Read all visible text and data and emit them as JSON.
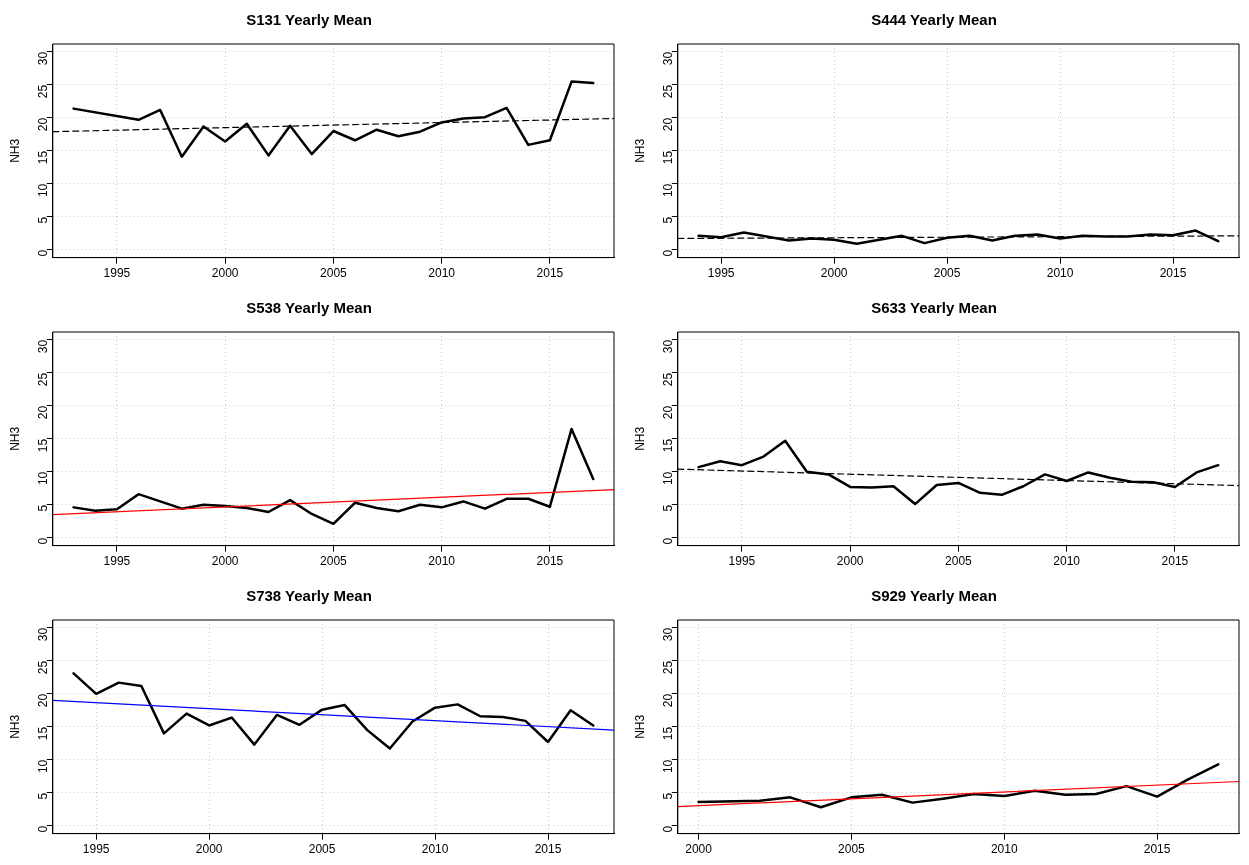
{
  "chart_data": [
    {
      "type": "line",
      "title": "S131 Yearly Mean",
      "ylabel": "NH3",
      "xlim": [
        1992.04,
        2017.96
      ],
      "xticks": [
        1995,
        2000,
        2005,
        2010,
        2015
      ],
      "ylim": [
        -1.2,
        31.2
      ],
      "yticks": [
        0,
        5,
        10,
        15,
        20,
        25,
        30
      ],
      "grid": true,
      "marker": "none",
      "series": [
        {
          "color": "#000000",
          "line_style": "solid",
          "x": [
            1993,
            1996,
            1997,
            1998,
            1999,
            2000,
            2001,
            2002,
            2003,
            2004,
            2005,
            2006,
            2007,
            2008,
            2009,
            2010,
            2011,
            2012,
            2013,
            2014,
            2015,
            2016,
            2017
          ],
          "values": [
            21.4,
            19.7,
            21.2,
            14.1,
            18.7,
            16.4,
            19.1,
            14.3,
            18.8,
            14.5,
            18.0,
            16.6,
            18.2,
            17.2,
            17.9,
            19.3,
            19.9,
            20.1,
            21.5,
            15.9,
            16.6,
            25.5,
            25.3
          ]
        },
        {
          "color": "#000000",
          "line_style": "dashed",
          "x": [
            1992.04,
            2017.96
          ],
          "values": [
            17.9,
            19.9
          ]
        }
      ]
    },
    {
      "type": "line",
      "title": "S444 Yearly Mean",
      "ylabel": "NH3",
      "xlim": [
        1993.08,
        2017.92
      ],
      "xticks": [
        1995,
        2000,
        2005,
        2010,
        2015
      ],
      "ylim": [
        -1.2,
        31.2
      ],
      "yticks": [
        0,
        5,
        10,
        15,
        20,
        25,
        30
      ],
      "grid": true,
      "marker": "none",
      "series": [
        {
          "color": "#000000",
          "line_style": "solid",
          "x": [
            1994,
            1995,
            1996,
            1997,
            1998,
            1999,
            2000,
            2001,
            2002,
            2003,
            2004,
            2005,
            2006,
            2007,
            2008,
            2009,
            2010,
            2011,
            2012,
            2013,
            2014,
            2015,
            2016,
            2017
          ],
          "values": [
            2.1,
            1.9,
            2.6,
            2.0,
            1.4,
            1.7,
            1.5,
            0.9,
            1.5,
            2.1,
            1.0,
            1.8,
            2.1,
            1.4,
            2.1,
            2.3,
            1.7,
            2.1,
            2.0,
            2.0,
            2.3,
            2.2,
            2.9,
            1.3
          ]
        },
        {
          "color": "#000000",
          "line_style": "dashed",
          "x": [
            1993.08,
            2017.92
          ],
          "values": [
            1.7,
            2.1
          ]
        }
      ]
    },
    {
      "type": "line",
      "title": "S538 Yearly Mean",
      "ylabel": "NH3",
      "xlim": [
        1992.04,
        2017.96
      ],
      "xticks": [
        1995,
        2000,
        2005,
        2010,
        2015
      ],
      "ylim": [
        -1.2,
        31.2
      ],
      "yticks": [
        0,
        5,
        10,
        15,
        20,
        25,
        30
      ],
      "grid": true,
      "marker": "none",
      "series": [
        {
          "color": "#000000",
          "line_style": "solid",
          "x": [
            1993,
            1994,
            1995,
            1996,
            1997,
            1998,
            1999,
            2000,
            2001,
            2002,
            2003,
            2004,
            2005,
            2006,
            2007,
            2008,
            2009,
            2010,
            2011,
            2012,
            2013,
            2014,
            2015,
            2016,
            2017
          ],
          "values": [
            4.6,
            4.1,
            4.3,
            6.6,
            5.5,
            4.4,
            5.0,
            4.8,
            4.5,
            3.9,
            5.7,
            3.6,
            2.1,
            5.3,
            4.5,
            4.0,
            5.0,
            4.6,
            5.5,
            4.4,
            5.9,
            5.9,
            4.7,
            16.5,
            8.9
          ]
        },
        {
          "color": "#ff0000",
          "line_style": "solid",
          "x": [
            1992.04,
            2017.96
          ],
          "values": [
            3.5,
            7.3
          ]
        }
      ]
    },
    {
      "type": "line",
      "title": "S633 Yearly Mean",
      "ylabel": "NH3",
      "xlim": [
        1992.04,
        2017.96
      ],
      "xticks": [
        1995,
        2000,
        2005,
        2010,
        2015
      ],
      "ylim": [
        -1.2,
        31.2
      ],
      "yticks": [
        0,
        5,
        10,
        15,
        20,
        25,
        30
      ],
      "grid": true,
      "marker": "none",
      "series": [
        {
          "color": "#000000",
          "line_style": "solid",
          "x": [
            1993,
            1994,
            1995,
            1996,
            1997,
            1998,
            1999,
            2000,
            2001,
            2002,
            2003,
            2004,
            2005,
            2006,
            2007,
            2008,
            2009,
            2010,
            2011,
            2012,
            2013,
            2014,
            2015,
            2016,
            2017
          ],
          "values": [
            10.7,
            11.6,
            11.0,
            12.3,
            14.7,
            10.0,
            9.6,
            7.7,
            7.6,
            7.8,
            5.1,
            8.0,
            8.3,
            6.8,
            6.5,
            7.8,
            9.6,
            8.6,
            9.9,
            9.1,
            8.5,
            8.4,
            7.7,
            9.9,
            11.0
          ]
        },
        {
          "color": "#000000",
          "line_style": "dashed",
          "x": [
            1992.04,
            2017.96
          ],
          "values": [
            10.4,
            7.9
          ]
        }
      ]
    },
    {
      "type": "line",
      "title": "S738 Yearly Mean",
      "ylabel": "NH3",
      "xlim": [
        1993.08,
        2017.92
      ],
      "xticks": [
        1995,
        2000,
        2005,
        2010,
        2015
      ],
      "ylim": [
        -1.2,
        31.2
      ],
      "yticks": [
        0,
        5,
        10,
        15,
        20,
        25,
        30
      ],
      "grid": true,
      "marker": "none",
      "series": [
        {
          "color": "#000000",
          "line_style": "solid",
          "x": [
            1994,
            1995,
            1996,
            1997,
            1998,
            1999,
            2000,
            2001,
            2002,
            2003,
            2004,
            2005,
            2006,
            2007,
            2008,
            2009,
            2010,
            2011,
            2012,
            2013,
            2014,
            2015,
            2016,
            2017
          ],
          "values": [
            23.1,
            20.0,
            21.7,
            21.2,
            14.0,
            17.0,
            15.2,
            16.4,
            12.3,
            16.8,
            15.3,
            17.6,
            18.3,
            14.5,
            11.7,
            15.8,
            17.9,
            18.4,
            16.6,
            16.5,
            15.9,
            12.7,
            17.5,
            15.2
          ]
        },
        {
          "color": "#0000ff",
          "line_style": "solid",
          "x": [
            1993.08,
            2017.92
          ],
          "values": [
            19.0,
            14.5
          ]
        }
      ]
    },
    {
      "type": "line",
      "title": "S929 Yearly Mean",
      "ylabel": "NH3",
      "xlim": [
        1999.32,
        2017.68
      ],
      "xticks": [
        2000,
        2005,
        2010,
        2015
      ],
      "ylim": [
        -1.2,
        31.2
      ],
      "yticks": [
        0,
        5,
        10,
        15,
        20,
        25,
        30
      ],
      "grid": true,
      "marker": "none",
      "series": [
        {
          "color": "#000000",
          "line_style": "solid",
          "x": [
            2000,
            2002,
            2003,
            2004,
            2005,
            2006,
            2007,
            2008,
            2009,
            2010,
            2011,
            2012,
            2013,
            2014,
            2015,
            2016,
            2017
          ],
          "values": [
            3.6,
            3.8,
            4.3,
            2.8,
            4.3,
            4.7,
            3.5,
            4.1,
            4.8,
            4.5,
            5.3,
            4.7,
            4.8,
            6.0,
            4.4,
            7.0,
            9.3
          ]
        },
        {
          "color": "#ff0000",
          "line_style": "solid",
          "x": [
            1999.32,
            2017.68
          ],
          "values": [
            2.9,
            6.7
          ]
        }
      ]
    }
  ]
}
